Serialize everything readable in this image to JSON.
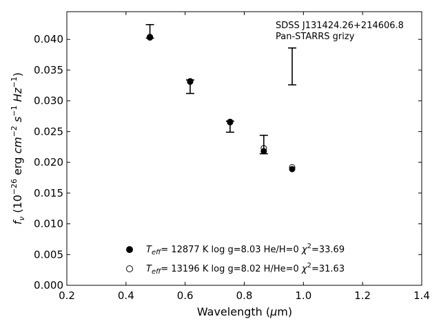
{
  "chart_data": {
    "type": "scatter",
    "xlabel": "Wavelength (μm)",
    "ylabel": "f_ν (10^-26 erg cm^-2 s^-1 Hz^-1)",
    "xlim": [
      0.2,
      1.4
    ],
    "ylim": [
      0.0,
      0.0445
    ],
    "x_ticks": [
      0.2,
      0.4,
      0.6,
      0.8,
      1.0,
      1.2,
      1.4
    ],
    "x_tick_labels": [
      "0.2",
      "0.4",
      "0.6",
      "0.8",
      "1.0",
      "1.2",
      "1.4"
    ],
    "y_ticks": [
      0.0,
      0.005,
      0.01,
      0.015,
      0.02,
      0.025,
      0.03,
      0.035,
      0.04
    ],
    "y_tick_labels": [
      "0.000",
      "0.005",
      "0.010",
      "0.015",
      "0.020",
      "0.025",
      "0.030",
      "0.035",
      "0.040"
    ],
    "grid": false,
    "annotation_lines": [
      "SDSS J131424.26+214606.8",
      "Pan-STARRS grizy"
    ],
    "observed": {
      "x": [
        0.481,
        0.617,
        0.752,
        0.866,
        0.962
      ],
      "y": [
        0.0413,
        0.0323,
        0.0258,
        0.0229,
        0.0356
      ],
      "yerr": [
        0.0011,
        0.0011,
        0.0009,
        0.0015,
        0.003
      ]
    },
    "series": [
      {
        "name": "T_eff= 12877 K  log g=8.03  He/H=0  χ²=33.69",
        "marker": "filled-circle",
        "x": [
          0.481,
          0.617,
          0.752,
          0.866,
          0.962
        ],
        "y": [
          0.0403,
          0.0332,
          0.0266,
          0.0218,
          0.0189
        ]
      },
      {
        "name": "T_eff= 13196 K  log g=8.02  H/He=0  χ²=31.63",
        "marker": "open-circle",
        "x": [
          0.481,
          0.617,
          0.752,
          0.866,
          0.962
        ],
        "y": [
          0.0404,
          0.0331,
          0.0265,
          0.0223,
          0.0192
        ]
      }
    ],
    "legend_position": "lower-center"
  }
}
